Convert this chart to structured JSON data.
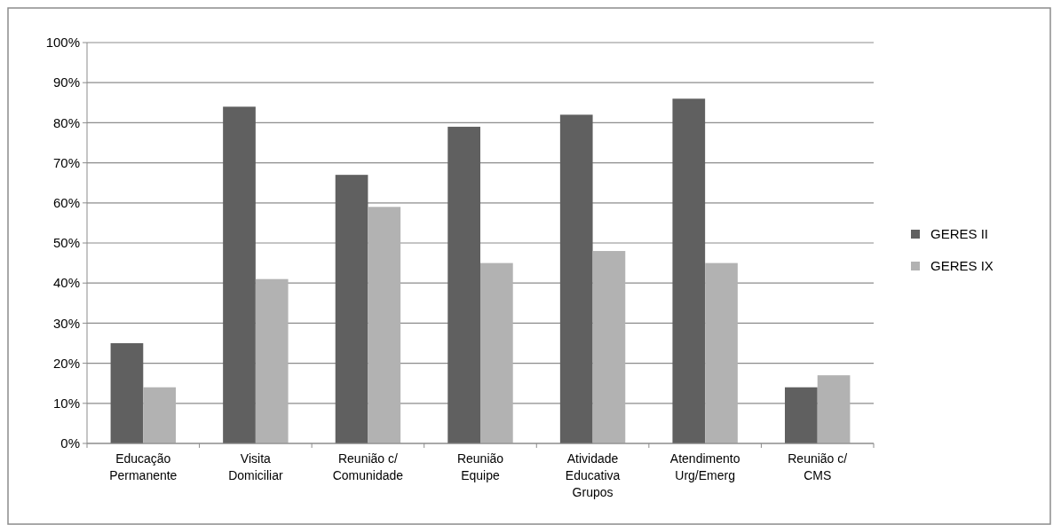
{
  "chart_data": {
    "type": "bar",
    "categories": [
      "Educação Permanente",
      "Visita Domiciliar",
      "Reunião c/ Comunidade",
      "Reunião Equipe",
      "Atividade Educativa Grupos",
      "Atendimento Urg/Emerg",
      "Reunião c/ CMS"
    ],
    "series": [
      {
        "name": "GERES II",
        "color": "#606060",
        "values": [
          25,
          84,
          67,
          79,
          82,
          86,
          14
        ]
      },
      {
        "name": "GERES IX",
        "color": "#b2b2b2",
        "values": [
          14,
          41,
          59,
          45,
          48,
          45,
          17
        ]
      }
    ],
    "ylim": [
      0,
      100
    ],
    "yticks": [
      {
        "value": 0,
        "label": "0%"
      },
      {
        "value": 10,
        "label": "10%"
      },
      {
        "value": 20,
        "label": "20%"
      },
      {
        "value": 30,
        "label": "30%"
      },
      {
        "value": 40,
        "label": "40%"
      },
      {
        "value": 50,
        "label": "50%"
      },
      {
        "value": 60,
        "label": "60%"
      },
      {
        "value": 70,
        "label": "70%"
      },
      {
        "value": 80,
        "label": "80%"
      },
      {
        "value": 90,
        "label": "90%"
      },
      {
        "value": 100,
        "label": "100%"
      }
    ],
    "grid": "y",
    "legend": "right"
  }
}
